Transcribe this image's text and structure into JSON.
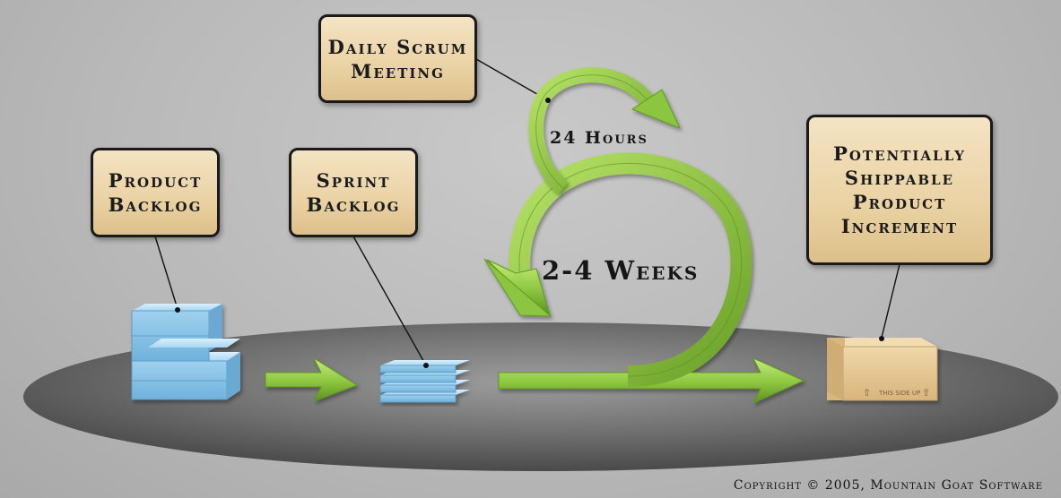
{
  "labels": {
    "daily_scrum": "Daily Scrum\nMeeting",
    "product_backlog": "Product\nBacklog",
    "sprint_backlog": "Sprint\nBacklog",
    "increment": "Potentially\nShippable\nProduct\nIncrement"
  },
  "cycles": {
    "daily": "24 Hours",
    "sprint": "2-4 Weeks"
  },
  "box_text": "THIS SIDE UP",
  "copyright": "Copyright © 2005, Mountain Goat Software",
  "colors": {
    "label_fill": "#ead2a3",
    "arrow_green": "#8cc63f",
    "backlog_blue": "#a9d6f0",
    "box_tan": "#e3c592",
    "floor": "#5e5e5e"
  }
}
